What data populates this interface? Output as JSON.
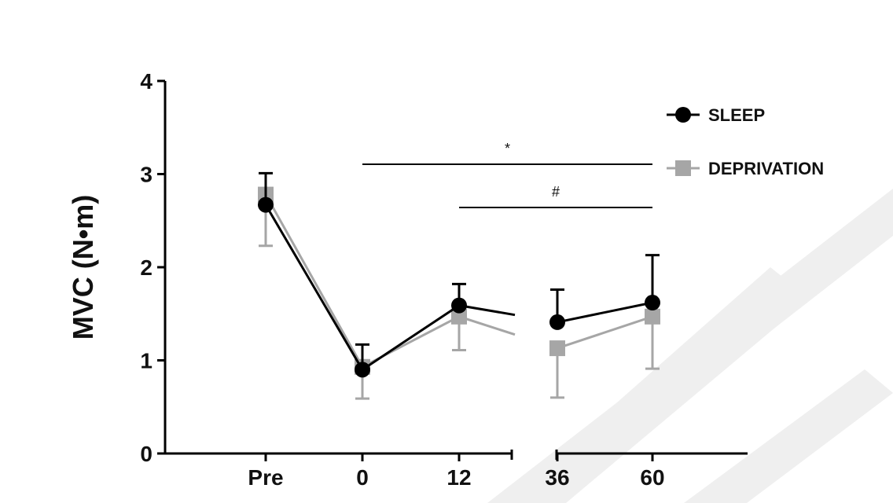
{
  "chart_data": {
    "type": "line",
    "title": "",
    "xlabel": "",
    "ylabel": "MVC (N•m)",
    "ylim": [
      0,
      4
    ],
    "yticks": [
      0,
      1,
      2,
      3,
      4
    ],
    "categories": [
      "Pre",
      "0",
      "12",
      "36",
      "60"
    ],
    "axis_break": "between 12 and 36",
    "series": [
      {
        "name": "SLEEP",
        "color": "#000000",
        "marker": "circle",
        "values": [
          2.67,
          0.9,
          1.59,
          1.41,
          1.62
        ],
        "error_plus": [
          0.34,
          0.27,
          0.23,
          0.35,
          0.51
        ]
      },
      {
        "name": "DEPRIVATION",
        "color": "#a6a6a6",
        "marker": "square",
        "values": [
          2.78,
          0.93,
          1.47,
          1.13,
          1.47
        ],
        "error_minus": [
          0.55,
          0.34,
          0.36,
          0.53,
          0.56
        ]
      }
    ],
    "significance_bars": [
      {
        "label": "*",
        "from": "0",
        "to": "60"
      },
      {
        "label": "#",
        "from": "12",
        "to": "60"
      }
    ],
    "legend_position": "top-right"
  }
}
